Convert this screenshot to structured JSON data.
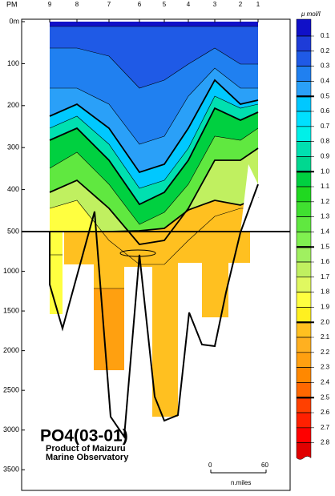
{
  "chart_data": {
    "type": "contour",
    "title": "PO4(03-01)",
    "subtitle": [
      "Product of Maizuru",
      "Marine Observatory"
    ],
    "x_label": "PM",
    "stations": [
      "9",
      "8",
      "7",
      "6",
      "5",
      "4",
      "3",
      "2",
      "1"
    ],
    "ylim_upper": [
      0,
      500
    ],
    "yticks_upper": [
      {
        "value": 0,
        "label": "0m"
      },
      100,
      200,
      300,
      400,
      500
    ],
    "ylim_lower": [
      500,
      3760
    ],
    "yticks_lower": [
      1000,
      1500,
      2000,
      2500,
      3000,
      3500
    ],
    "colorbar": {
      "unit": "μ mol/l",
      "levels": [
        0.1,
        0.2,
        0.3,
        0.4,
        0.5,
        0.6,
        0.7,
        0.8,
        0.9,
        {
          "value": 1,
          "label": "1.0"
        },
        1.1,
        1.2,
        1.3,
        1.4,
        1.5,
        1.6,
        1.7,
        1.8,
        1.9,
        {
          "value": 2,
          "label": "2.0"
        },
        2.1,
        2.2,
        2.3,
        2.4,
        2.5,
        2.6,
        2.7,
        2.8
      ],
      "band_colors": [
        "#1010c8",
        "#1e3cd8",
        "#1f5ae6",
        "#2080f0",
        "#2aa0f8",
        "#00c8ff",
        "#00e0ff",
        "#00f0e8",
        "#00e0b0",
        "#00d890",
        "#00d040",
        "#20d820",
        "#40e030",
        "#60e840",
        "#80f050",
        "#a0f060",
        "#c0f060",
        "#e0f860",
        "#ffff40",
        "#fff020",
        "#ffc020",
        "#ffb020",
        "#ffa010",
        "#ff8800",
        "#ff6800",
        "#ff4000",
        "#ff2000",
        "#ff0000",
        "#e00000"
      ],
      "major_levels": [
        0.5,
        1,
        1.5,
        2,
        2.5
      ]
    },
    "scale_bar": {
      "ticks": [
        0,
        60
      ],
      "label": "n.miles"
    }
  }
}
